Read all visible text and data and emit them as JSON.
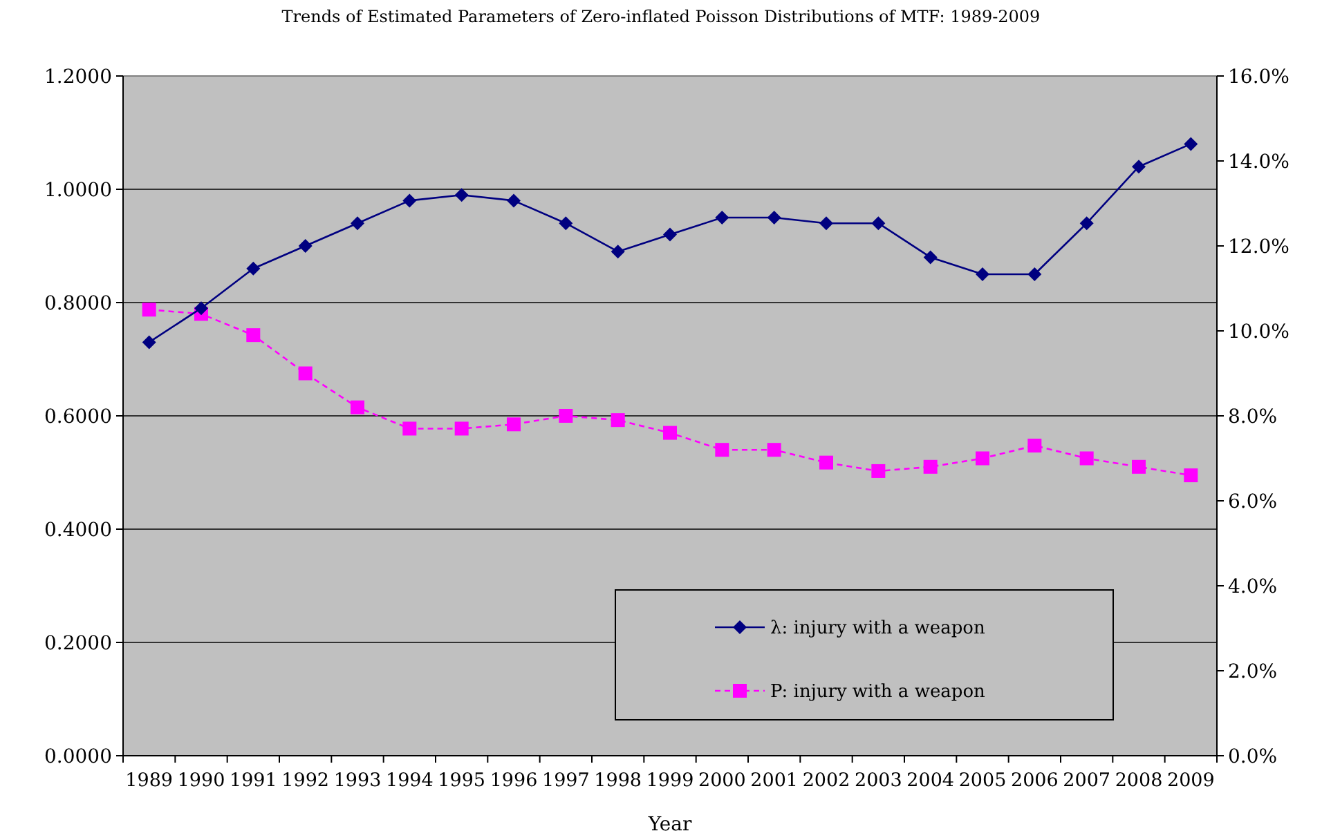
{
  "chart_data": {
    "type": "line",
    "title": "Trends of Estimated Parameters of Zero-inflated Poisson Distributions of  MTF: 1989-2009",
    "xlabel": "Year",
    "categories": [
      "1989",
      "1990",
      "1991",
      "1992",
      "1993",
      "1994",
      "1995",
      "1996",
      "1997",
      "1998",
      "1999",
      "2000",
      "2001",
      "2002",
      "2003",
      "2004",
      "2005",
      "2006",
      "2007",
      "2008",
      "2009"
    ],
    "series": [
      {
        "name": "λ: injury with a weapon",
        "color": "#000080",
        "marker": "diamond",
        "line_style": "solid",
        "values": [
          0.73,
          0.79,
          0.86,
          0.9,
          0.94,
          0.98,
          0.99,
          0.98,
          0.94,
          0.89,
          0.92,
          0.95,
          0.95,
          0.94,
          0.94,
          0.88,
          0.85,
          0.85,
          0.94,
          1.04,
          1.08
        ]
      },
      {
        "name": "P: injury with a weapon",
        "color": "#ff00ff",
        "marker": "square",
        "line_style": "dashed",
        "axis": "y2",
        "values": [
          10.5,
          10.4,
          9.9,
          9.0,
          8.2,
          7.7,
          7.7,
          7.8,
          8.0,
          7.9,
          7.6,
          7.2,
          7.2,
          6.9,
          6.7,
          6.8,
          7.0,
          7.3,
          7.0,
          6.8,
          6.6
        ]
      }
    ],
    "ylim": [
      0,
      1.2
    ],
    "yticks": [
      {
        "value": 0,
        "label": "0.0000"
      },
      {
        "value": 0.2,
        "label": "0.2000"
      },
      {
        "value": 0.4,
        "label": "0.4000"
      },
      {
        "value": 0.6,
        "label": "0.6000"
      },
      {
        "value": 0.8,
        "label": "0.8000"
      },
      {
        "value": 1.0,
        "label": "1.0000"
      },
      {
        "value": 1.2,
        "label": "1.2000"
      }
    ],
    "y2lim": [
      0,
      16
    ],
    "y2ticks": [
      {
        "value": 0,
        "label": "0.0%"
      },
      {
        "value": 2,
        "label": "2.0%"
      },
      {
        "value": 4,
        "label": "4.0%"
      },
      {
        "value": 6,
        "label": "6.0%"
      },
      {
        "value": 8,
        "label": "8.0%"
      },
      {
        "value": 10,
        "label": "10.0%"
      },
      {
        "value": 12,
        "label": "12.0%"
      },
      {
        "value": 14,
        "label": "14.0%"
      },
      {
        "value": 16,
        "label": "16.0%"
      }
    ],
    "grid": "y",
    "legend": "bottom right"
  }
}
